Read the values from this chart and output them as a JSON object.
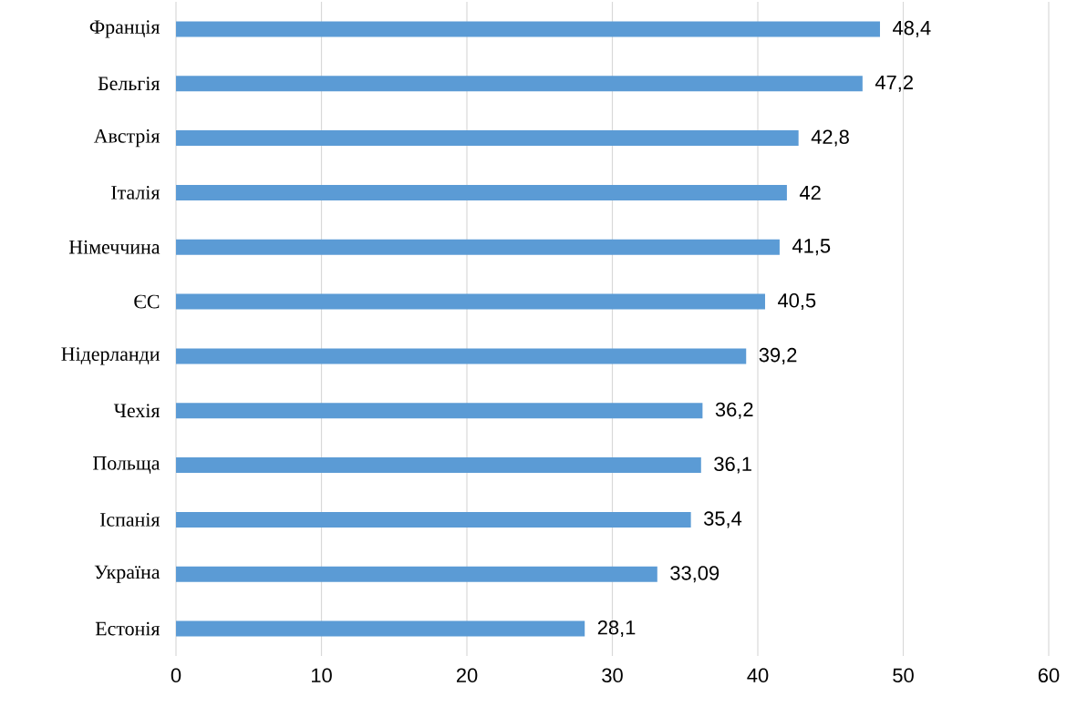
{
  "chart_data": {
    "type": "bar",
    "orientation": "horizontal",
    "categories": [
      "Франція",
      "Бельгія",
      "Австрія",
      "Італія",
      "Німеччина",
      "ЄС",
      "Нідерланди",
      "Чехія",
      "Польща",
      "Іспанія",
      "Україна",
      "Естонія"
    ],
    "values": [
      48.4,
      47.2,
      42.8,
      42,
      41.5,
      40.5,
      39.2,
      36.2,
      36.1,
      35.4,
      33.09,
      28.1
    ],
    "value_labels": [
      "48,4",
      "47,2",
      "42,8",
      "42",
      "41,5",
      "40,5",
      "39,2",
      "36,2",
      "36,1",
      "35,4",
      "33,09",
      "28,1"
    ],
    "color": "#5b9bd5",
    "xlim": [
      0,
      60
    ],
    "xticks": [
      0,
      10,
      20,
      30,
      40,
      50,
      60
    ],
    "grid": "x"
  }
}
